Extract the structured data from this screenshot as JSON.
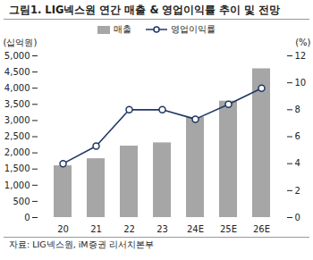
{
  "chart_data": {
    "type": "bar",
    "title": "그림1.  LIG넥스원 연간 매출 & 영업이익률 추이 및 전망",
    "categories": [
      "20",
      "21",
      "22",
      "23",
      "24E",
      "25E",
      "26E"
    ],
    "series": [
      {
        "name": "매출",
        "type": "bar",
        "color": "#a6a6a6",
        "values": [
          1600,
          1820,
          2210,
          2310,
          3100,
          3600,
          4600
        ]
      },
      {
        "name": "영업이익률",
        "type": "line",
        "axis": "y2",
        "color": "#203864",
        "marker": "circle",
        "line_style": "solid",
        "values": [
          4.0,
          5.3,
          8.0,
          8.0,
          7.3,
          8.4,
          9.6
        ]
      }
    ],
    "y_label": "(십억원)",
    "y2_label": "(%)",
    "ylim": [
      0,
      5000
    ],
    "yticks": [
      0,
      500,
      {
        "value": 1000,
        "label": "1,000"
      },
      {
        "value": 1500,
        "label": "1,500"
      },
      {
        "value": 2000,
        "label": "2,000"
      },
      {
        "value": 2500,
        "label": "2,500"
      },
      {
        "value": 3000,
        "label": "3,000"
      },
      {
        "value": 3500,
        "label": "3,500"
      },
      {
        "value": 4000,
        "label": "4,000"
      },
      {
        "value": 4500,
        "label": "4,500"
      },
      {
        "value": 5000,
        "label": "5,000"
      }
    ],
    "y2lim": [
      0,
      12
    ],
    "y2ticks": [
      0,
      2,
      4,
      6,
      8,
      10,
      12
    ],
    "legend": "top",
    "source": "자료: LIG넥스원, iM증권 리서치본부"
  }
}
